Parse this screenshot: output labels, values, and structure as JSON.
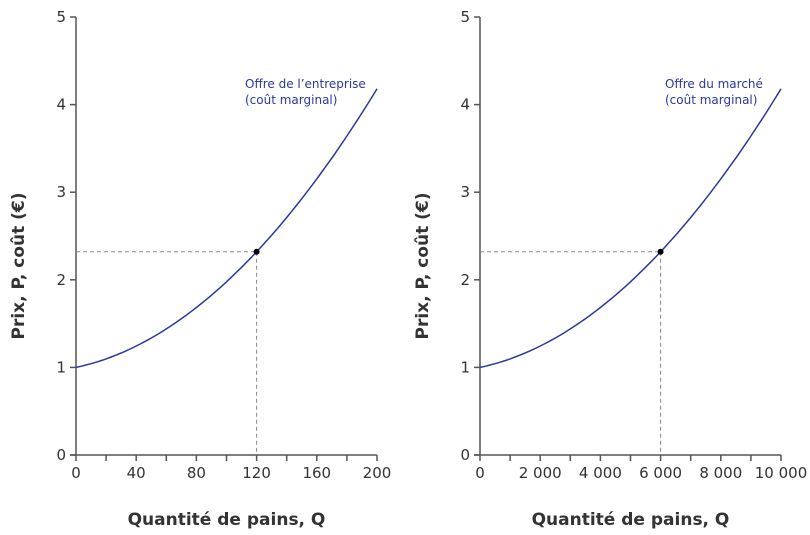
{
  "colors": {
    "curve": "#2b3a9b",
    "axis": "#555555",
    "guide": "#888888",
    "point": "#000000"
  },
  "chart_data": [
    {
      "type": "line",
      "xlabel": "Quantité de pains, Q",
      "ylabel": "Prix, P, coût (€)",
      "xlim": [
        0,
        200
      ],
      "ylim": [
        0,
        5
      ],
      "xticks": [
        0,
        40,
        80,
        120,
        160,
        200
      ],
      "xtick_labels": [
        "0",
        "40",
        "80",
        "120",
        "160",
        "200"
      ],
      "xminor_step": 20,
      "yticks": [
        0,
        1,
        2,
        3,
        4,
        5
      ],
      "ytick_labels": [
        "0",
        "1",
        "2",
        "3",
        "4",
        "5"
      ],
      "grid": false,
      "series": [
        {
          "name": "Offre de l’entreprise (coût marginal)",
          "x": [
            0,
            40,
            80,
            120,
            160,
            200
          ],
          "y": [
            1.0,
            1.24,
            1.68,
            2.32,
            3.15,
            4.18
          ]
        }
      ],
      "annotation_lines": [
        "Offre de l’entreprise",
        "(coût marginal)"
      ],
      "highlight_point": {
        "x": 120,
        "y": 2.32
      }
    },
    {
      "type": "line",
      "xlabel": "Quantité de pains, Q",
      "ylabel": "Prix, P, coût (€)",
      "xlim": [
        0,
        10000
      ],
      "ylim": [
        0,
        5
      ],
      "xticks": [
        0,
        2000,
        4000,
        6000,
        8000,
        10000
      ],
      "xtick_labels": [
        "0",
        "2 000",
        "4 000",
        "6 000",
        "8 000",
        "10 000"
      ],
      "xminor_step": 1000,
      "yticks": [
        0,
        1,
        2,
        3,
        4,
        5
      ],
      "ytick_labels": [
        "0",
        "1",
        "2",
        "3",
        "4",
        "5"
      ],
      "grid": false,
      "series": [
        {
          "name": "Offre du marché (coût marginal)",
          "x": [
            0,
            2000,
            4000,
            6000,
            8000,
            10000
          ],
          "y": [
            1.0,
            1.24,
            1.68,
            2.32,
            3.15,
            4.18
          ]
        }
      ],
      "annotation_lines": [
        "Offre du marché",
        "(coût marginal)"
      ],
      "highlight_point": {
        "x": 6000,
        "y": 2.32
      }
    }
  ]
}
